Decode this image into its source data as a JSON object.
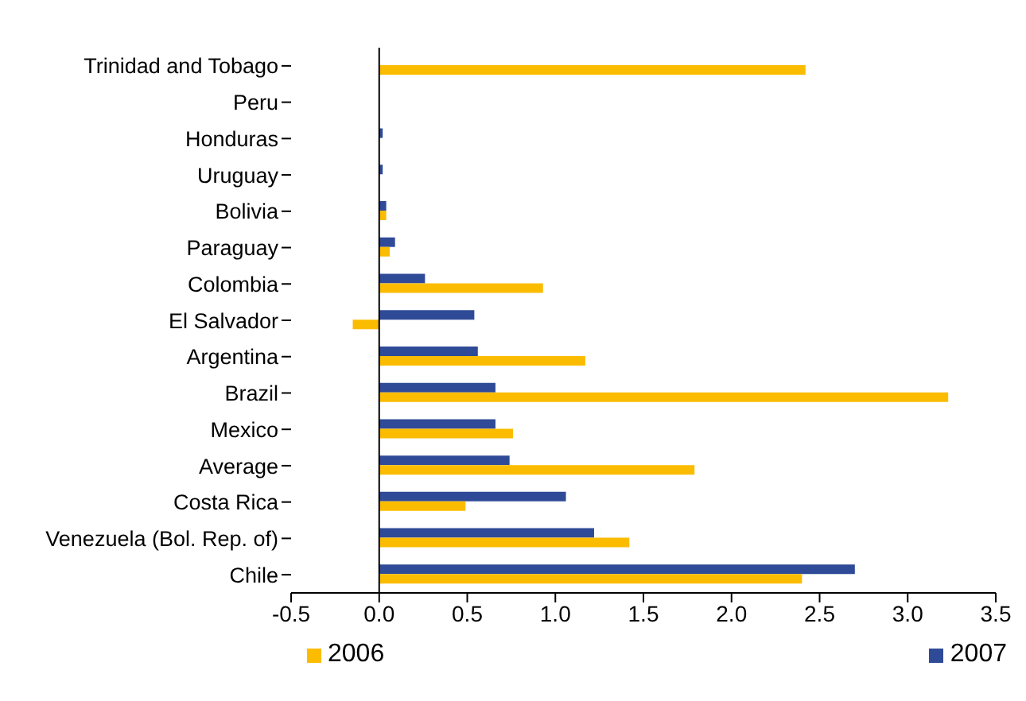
{
  "chart_data": {
    "type": "bar",
    "orientation": "horizontal",
    "categories": [
      "Trinidad and Tobago",
      "Peru",
      "Honduras",
      "Uruguay",
      "Bolivia",
      "Paraguay",
      "Colombia",
      "El Salvador",
      "Argentina",
      "Brazil",
      "Mexico",
      "Average",
      "Costa Rica",
      "Venezuela (Bol. Rep. of)",
      "Chile"
    ],
    "series": [
      {
        "name": "2006",
        "color": "#fbbc00",
        "values": [
          2.42,
          0,
          null,
          null,
          0.04,
          0.06,
          0.93,
          -0.15,
          1.17,
          3.23,
          0.76,
          1.79,
          0.49,
          1.42,
          2.4
        ]
      },
      {
        "name": "2007",
        "color": "#2f4b97",
        "values": [
          null,
          0,
          0.02,
          0.02,
          0.04,
          0.09,
          0.26,
          0.54,
          0.56,
          0.66,
          0.66,
          0.74,
          1.06,
          1.22,
          2.7
        ]
      }
    ],
    "xlim": [
      -0.5,
      3.5
    ],
    "xticks": [
      {
        "value": -0.5,
        "label": "-0.5"
      },
      {
        "value": 0,
        "label": "0.0"
      },
      {
        "value": 0.5,
        "label": "0.5"
      },
      {
        "value": 1,
        "label": "1.0"
      },
      {
        "value": 1.5,
        "label": "1.5"
      },
      {
        "value": 2,
        "label": "2.0"
      },
      {
        "value": 2.5,
        "label": "2.5"
      },
      {
        "value": 3,
        "label": "3.0"
      },
      {
        "value": 3.5,
        "label": "3.5"
      }
    ],
    "legend": "bottom"
  }
}
